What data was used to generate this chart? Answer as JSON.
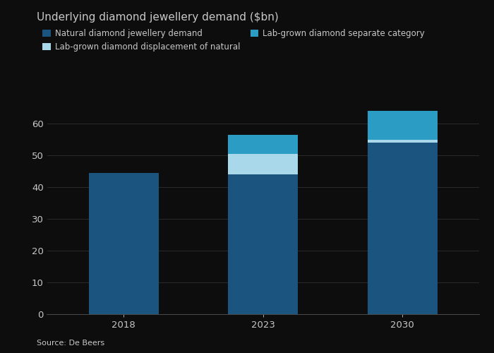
{
  "title": "Underlying diamond jewellery demand ($bn)",
  "source": "Source: De Beers",
  "categories": [
    "2018",
    "2023",
    "2030"
  ],
  "natural_diamond": [
    44.5,
    44.0,
    54.0
  ],
  "lab_displacement": [
    0,
    6.5,
    1.0
  ],
  "lab_separate": [
    0,
    6.0,
    9.0
  ],
  "colors": {
    "natural_diamond": "#1c5480",
    "lab_displacement": "#a8d8ea",
    "lab_separate": "#2b9cc4"
  },
  "legend_labels": [
    "Natural diamond jewellery demand",
    "Lab-grown diamond displacement of natural",
    "Lab-grown diamond separate category"
  ],
  "ylim": [
    0,
    70
  ],
  "yticks": [
    0,
    10,
    20,
    30,
    40,
    50,
    60
  ],
  "background_color": "#0d0d0d",
  "text_color": "#c8c8c8",
  "grid_color": "#2a2a2a",
  "title_fontsize": 11,
  "tick_fontsize": 9.5,
  "legend_fontsize": 8.5
}
